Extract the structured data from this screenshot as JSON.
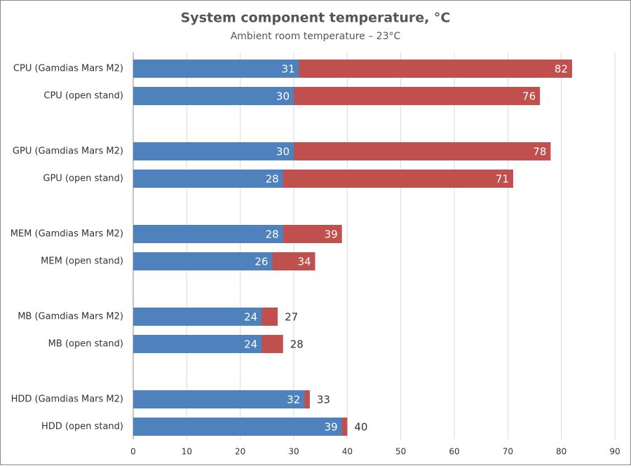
{
  "chart_data": {
    "type": "bar",
    "title": "System component temperature, °C",
    "subtitle": "Ambient room temperature – 23°C",
    "categories": [
      "CPU (Gamdias Mars M2)",
      "CPU (open stand)",
      "GPU (Gamdias Mars M2)",
      "GPU (open stand)",
      "MEM (Gamdias Mars M2)",
      "MEM (open stand)",
      "MB (Gamdias Mars M2)",
      "MB (open stand)",
      "HDD (Gamdias Mars M2)",
      "HDD (open stand)"
    ],
    "series": [
      {
        "color": "#c0504d",
        "values": [
          82,
          76,
          78,
          71,
          39,
          34,
          27,
          28,
          33,
          40
        ]
      },
      {
        "color": "#4f81bd",
        "values": [
          31,
          30,
          30,
          28,
          28,
          26,
          24,
          24,
          32,
          39
        ]
      }
    ],
    "xlim": [
      0,
      90
    ],
    "xticks": [
      0,
      10,
      20,
      30,
      40,
      50,
      60,
      70,
      80,
      90
    ],
    "grid": true
  }
}
